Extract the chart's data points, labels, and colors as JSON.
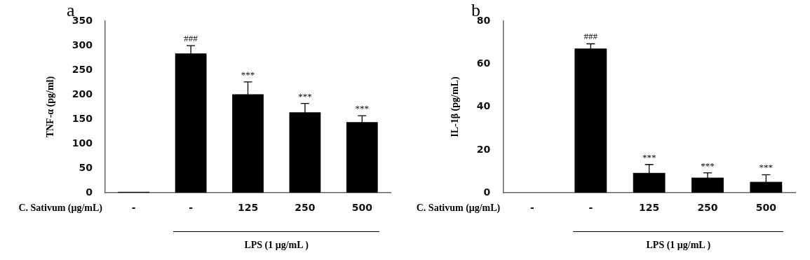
{
  "chart_data": [
    {
      "type": "bar",
      "title": "a",
      "ylabel": "TNF-α (pg/ml)",
      "xlabel": "LPS (1 μg/mL )",
      "categories": [
        "-",
        "-",
        "125",
        "250",
        "500"
      ],
      "values": [
        2,
        284,
        201,
        164,
        144
      ],
      "errors": [
        null,
        16,
        25,
        18,
        13
      ],
      "color": "#000000",
      "ylim": [
        0,
        350
      ],
      "yticks": [
        0,
        50,
        100,
        150,
        200,
        250,
        300,
        350
      ],
      "annotations": [
        "C. Sativum (μg/mL)",
        "###",
        {
          "text": "***",
          "x": "125",
          "y": 226
        },
        {
          "text": "***",
          "x": "250",
          "y": 182
        },
        {
          "text": "***",
          "x": "500",
          "y": 157
        }
      ]
    },
    {
      "type": "bar",
      "title": "b",
      "ylabel": "IL-1β (pg/mL)",
      "xlabel": "LPS (1 μg/mL )",
      "categories": [
        "-",
        "-",
        "125",
        "250",
        "500"
      ],
      "values": [
        0,
        67.2,
        9.3,
        7.1,
        5.1
      ],
      "errors": [
        null,
        2.2,
        3.9,
        2.2,
        3.3
      ],
      "color": "#000000",
      "ylim": [
        0,
        80
      ],
      "yticks": [
        0,
        20,
        40,
        60,
        80
      ],
      "annotations": [
        "C. Sativum (μg/mL)",
        "###",
        {
          "text": "***",
          "x": "125",
          "y": 13.2
        },
        {
          "text": "***",
          "x": "250",
          "y": 9.3
        },
        {
          "text": "***",
          "x": "500",
          "y": 8.4
        }
      ]
    }
  ]
}
